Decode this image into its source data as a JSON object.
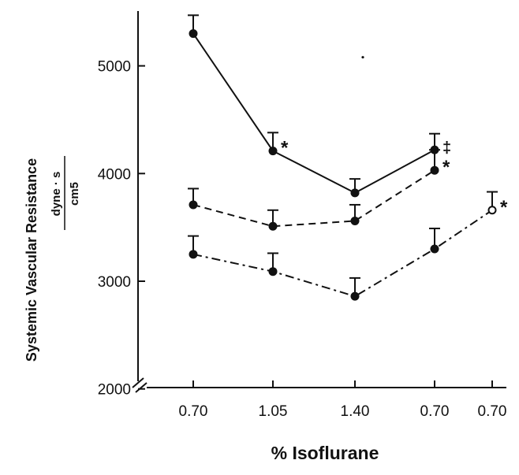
{
  "chart_data": {
    "type": "line",
    "xlabel": "% Isoflurane",
    "ylabel": "Systemic Vascular Resistance",
    "y_unit": {
      "numerator": "dyne · s",
      "denominator": "cm5"
    },
    "categories": [
      "0.70",
      "1.05",
      "1.40",
      "0.70",
      "0.70"
    ],
    "yticks": [
      2000,
      3000,
      4000,
      5000
    ],
    "ylim": [
      2000,
      5500
    ],
    "y_axis_break": true,
    "grid": false,
    "series": [
      {
        "style": "solid",
        "values": [
          5300,
          4210,
          3820,
          4220,
          null
        ],
        "errors": [
          170,
          170,
          130,
          150,
          null
        ],
        "markers": [
          null,
          "*",
          null,
          "‡",
          null
        ]
      },
      {
        "style": "dashed",
        "values": [
          3710,
          3510,
          3560,
          4030,
          null
        ],
        "errors": [
          150,
          150,
          150,
          190,
          null
        ],
        "markers": [
          null,
          null,
          null,
          "*",
          null
        ]
      },
      {
        "style": "dash-dot",
        "values": [
          3250,
          3090,
          2860,
          3300,
          3660
        ],
        "errors": [
          170,
          170,
          170,
          190,
          170
        ],
        "markers": [
          null,
          null,
          null,
          null,
          "*"
        ],
        "open_points": [
          4
        ]
      }
    ],
    "stray_dot": {
      "x_category_index": 2.05,
      "y": 5080
    }
  }
}
